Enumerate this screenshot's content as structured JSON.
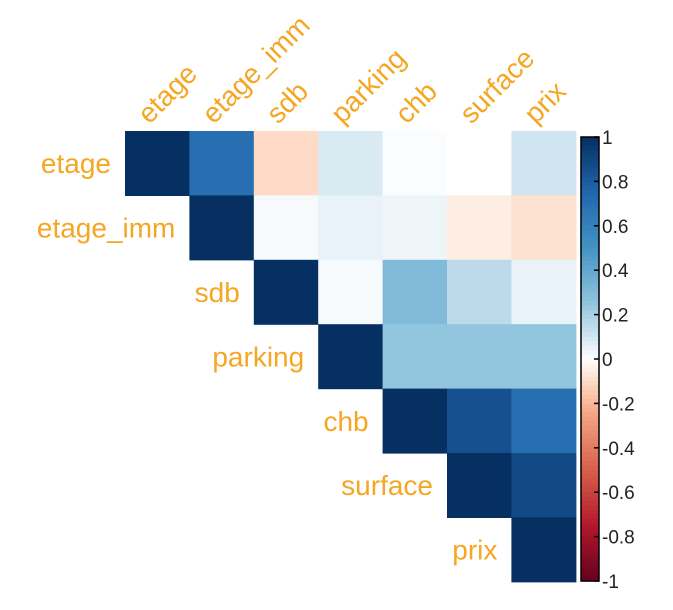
{
  "chart_data": {
    "type": "heatmap",
    "title": "",
    "variables": [
      "etage",
      "etage_imm",
      "sdb",
      "parking",
      "chb",
      "surface",
      "prix"
    ],
    "layout": "upper-triangle",
    "matrix": [
      [
        1.0,
        0.7,
        -0.1,
        0.08,
        0.01,
        0.0,
        0.1
      ],
      [
        null,
        1.0,
        0.02,
        0.05,
        0.04,
        -0.05,
        -0.08
      ],
      [
        null,
        null,
        1.0,
        0.02,
        0.3,
        0.15,
        0.05
      ],
      [
        null,
        null,
        null,
        1.0,
        0.25,
        0.25,
        0.25
      ],
      [
        null,
        null,
        null,
        null,
        1.0,
        0.85,
        0.7
      ],
      [
        null,
        null,
        null,
        null,
        null,
        1.0,
        0.88
      ],
      [
        null,
        null,
        null,
        null,
        null,
        null,
        1.0
      ]
    ],
    "colorbar": {
      "range": [
        -1,
        1
      ],
      "ticks": [
        "1",
        "0.8",
        "0.6",
        "0.4",
        "0.2",
        "0",
        "-0.2",
        "-0.4",
        "-0.6",
        "-0.8",
        "-1"
      ],
      "tick_values": [
        1,
        0.8,
        0.6,
        0.4,
        0.2,
        0,
        -0.2,
        -0.4,
        -0.6,
        -0.8,
        -1
      ],
      "colors": {
        "negative": "#67001f",
        "zero": "#ffffff",
        "positive": "#053061"
      }
    },
    "label_color": "#f5a623"
  }
}
